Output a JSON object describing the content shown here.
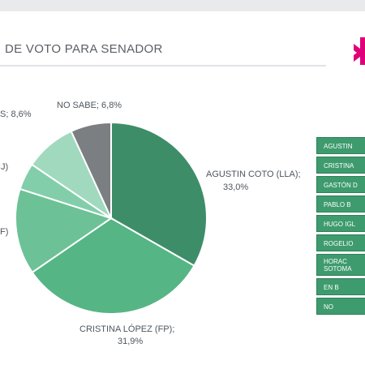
{
  "header": {
    "title": "DE VOTO PARA SENADOR"
  },
  "colors": {
    "accent": "#e0007a"
  },
  "chart_data": {
    "type": "pie",
    "slices": [
      {
        "label": "AGUSTIN COTO (LLA);",
        "pct_label": "33,0%",
        "value": 33.0,
        "color": "#3e8d69"
      },
      {
        "label": "CRISTINA LÓPEZ (FP);",
        "pct_label": "31,9%",
        "value": 31.9,
        "color": "#56b585"
      },
      {
        "label": "F)",
        "pct_label": "",
        "value": 14.4,
        "color": "#6cc296"
      },
      {
        "label": "IJ)",
        "pct_label": "",
        "value": 4.5,
        "color": "#83ceaa"
      },
      {
        "label": "S; 8,6%",
        "pct_label": "",
        "value": 8.6,
        "color": "#a1d9bf"
      },
      {
        "label": "NO SABE; 6,8%",
        "pct_label": "",
        "value": 6.8,
        "color": "#7b7f82"
      }
    ]
  },
  "legend": {
    "items": [
      "AGUSTIN",
      "CRISTINA",
      "GASTÓN D",
      "PABLO B",
      "HUGO IGL",
      "ROGELIO",
      "HORAC SOTOMA",
      "EN B",
      "NO"
    ]
  }
}
